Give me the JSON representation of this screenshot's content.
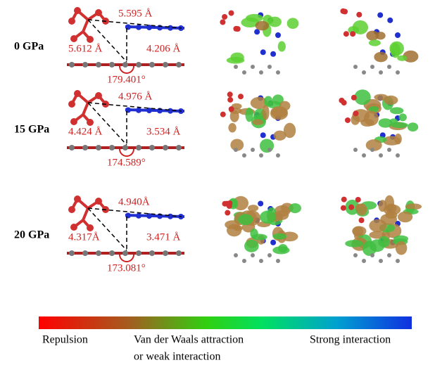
{
  "rows": [
    {
      "pressure": "0 GPa",
      "distance_top": "5.595 Å",
      "distance_left": "5.612 Å",
      "distance_right": "4.206 Å",
      "angle": "179.401°"
    },
    {
      "pressure": "15 GPa",
      "distance_top": "4.976 Å",
      "distance_left": "4.424 Å",
      "distance_right": "3.534 Å",
      "angle": "174.589°"
    },
    {
      "pressure": "20 GPa",
      "distance_top": "4.940Å",
      "distance_left": "4.317Å",
      "distance_right": "3.471 Å",
      "angle": "173.081°"
    }
  ],
  "colorbar": {
    "labels": [
      "Repulsion",
      "Van der Waals attraction",
      "Strong interaction"
    ],
    "sublabel": "or  weak interaction"
  }
}
